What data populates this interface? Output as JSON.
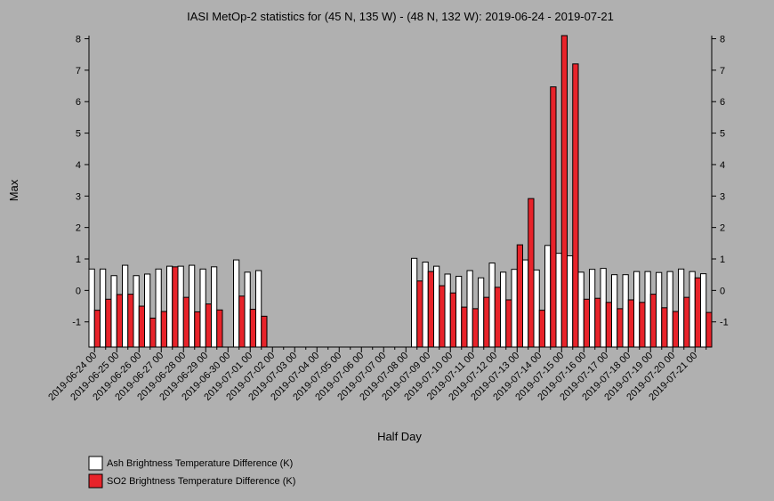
{
  "chart_data": {
    "type": "bar",
    "title": "IASI MetOp-2 statistics for (45 N, 135 W) - (48 N, 132 W): 2019-06-24 - 2019-07-21",
    "xlabel": "Half Day",
    "ylabel": "Max",
    "categories": [
      "2019-06-24 00",
      null,
      "2019-06-25 00",
      null,
      "2019-06-26 00",
      null,
      "2019-06-27 00",
      null,
      "2019-06-28 00",
      null,
      "2019-06-29 00",
      null,
      "2019-06-30 00",
      null,
      "2019-07-01 00",
      null,
      "2019-07-02 00",
      null,
      "2019-07-03 00",
      null,
      "2019-07-04 00",
      null,
      "2019-07-05 00",
      null,
      "2019-07-06 00",
      null,
      "2019-07-07 00",
      null,
      "2019-07-08 00",
      null,
      "2019-07-09 00",
      null,
      "2019-07-10 00",
      null,
      "2019-07-11 00",
      null,
      "2019-07-12 00",
      null,
      "2019-07-13 00",
      null,
      "2019-07-14 00",
      null,
      "2019-07-15 00",
      null,
      "2019-07-16 00",
      null,
      "2019-07-17 00",
      null,
      "2019-07-18 00",
      null,
      "2019-07-19 00",
      null,
      "2019-07-20 00",
      null,
      "2019-07-21 00",
      null
    ],
    "series": [
      {
        "name": "Ash Brightness Temperature Difference (K)",
        "color": "#ffffff",
        "values": [
          0.68,
          0.68,
          0.47,
          0.8,
          0.47,
          0.52,
          0.68,
          0.77,
          0.77,
          0.8,
          0.68,
          0.75,
          null,
          0.97,
          0.58,
          0.63,
          null,
          null,
          null,
          null,
          null,
          null,
          null,
          null,
          null,
          null,
          null,
          null,
          null,
          1.02,
          0.9,
          0.77,
          0.52,
          0.45,
          0.63,
          0.4,
          0.87,
          0.58,
          0.67,
          0.97,
          0.65,
          1.43,
          1.18,
          1.1,
          0.58,
          0.67,
          0.7,
          0.5,
          0.5,
          0.6,
          0.6,
          0.57,
          0.6,
          0.68,
          0.6,
          0.53
        ]
      },
      {
        "name": "SO2 Brightness Temperature Difference (K)",
        "color": "#e8232a",
        "values": [
          -0.63,
          -0.28,
          -0.13,
          -0.12,
          -0.5,
          -0.88,
          -0.67,
          0.75,
          -0.22,
          -0.68,
          -0.43,
          -0.62,
          null,
          -0.18,
          -0.6,
          -0.82,
          null,
          null,
          null,
          null,
          null,
          null,
          null,
          null,
          null,
          null,
          null,
          null,
          null,
          0.3,
          0.6,
          0.15,
          -0.08,
          -0.53,
          -0.58,
          -0.22,
          0.1,
          -0.3,
          1.45,
          2.92,
          -0.63,
          6.47,
          8.1,
          7.2,
          -0.28,
          -0.25,
          -0.38,
          -0.58,
          -0.3,
          -0.38,
          -0.12,
          -0.55,
          -0.67,
          -0.22,
          0.4,
          -0.7
        ]
      }
    ],
    "ylim": [
      -1.8,
      8.1
    ],
    "yticks": [
      -1,
      0,
      1,
      2,
      3,
      4,
      5,
      6,
      7,
      8
    ]
  }
}
